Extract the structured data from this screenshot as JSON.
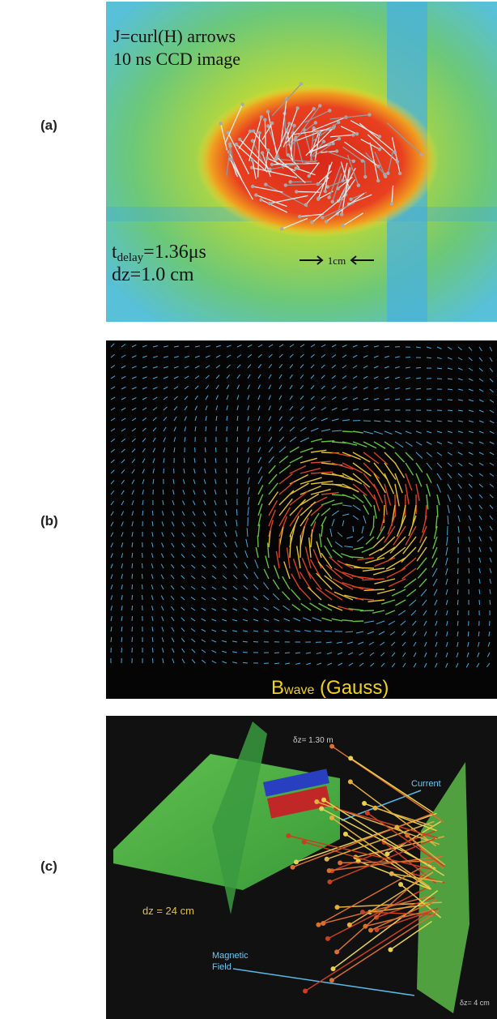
{
  "panels": [
    {
      "label": "(a)",
      "annotations": {
        "line1": "J=curl(H) arrows",
        "line2": "10 ns CCD image",
        "delay": {
          "base": "t",
          "sub": "delay",
          "rest": "=1.36μs"
        },
        "dz": "dz=1.0 cm",
        "scale": "1cm"
      }
    },
    {
      "label": "(b)",
      "annotations": {
        "field": {
          "base": "B",
          "sub": "wave",
          "rest": " (Gauss)"
        }
      }
    },
    {
      "label": "(c)",
      "annotations": {
        "dz_top": "δz= 1.30 m",
        "current": "Current",
        "dz_left": "dz = 24 cm",
        "magnetic": [
          "Magnetic",
          "Field"
        ],
        "dz_bottom": "δz= 4 cm"
      }
    }
  ]
}
